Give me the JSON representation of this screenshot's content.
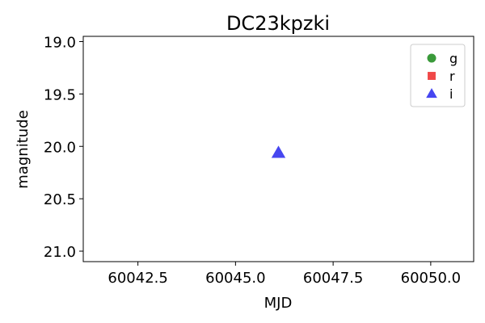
{
  "chart_data": {
    "type": "scatter",
    "title": "DC23kpzki",
    "xlabel": "MJD",
    "ylabel": "magnitude",
    "xlim": [
      60041.1,
      60051.1
    ],
    "ylim": [
      21.1,
      18.95
    ],
    "y_inverted": true,
    "xticks": [
      60042.5,
      60045.0,
      60047.5,
      60050.0
    ],
    "xtick_labels": [
      "60042.5",
      "60045.0",
      "60047.5",
      "60050.0"
    ],
    "yticks": [
      19.0,
      19.5,
      20.0,
      20.5,
      21.0
    ],
    "ytick_labels": [
      "19.0",
      "19.5",
      "20.0",
      "20.5",
      "21.0"
    ],
    "grid": false,
    "legend_position": "top-right",
    "series": [
      {
        "name": "g",
        "marker": "circle",
        "color": "#3a9a3a",
        "points": []
      },
      {
        "name": "r",
        "marker": "square",
        "color": "#f04848",
        "points": []
      },
      {
        "name": "i",
        "marker": "triangle",
        "color": "#4646f0",
        "points": [
          {
            "x": 60046.1,
            "y": 20.06
          }
        ]
      }
    ]
  }
}
